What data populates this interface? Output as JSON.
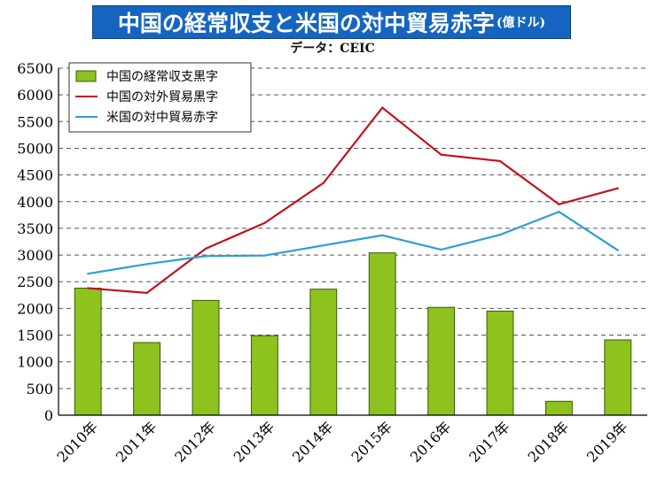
{
  "title": "中国の経常収支と米国の対中貿易赤字",
  "unit": "(億ドル)",
  "source": "データ：CEIC",
  "colors": {
    "title_bg": "#1565c0",
    "bar": "#8dc21f",
    "bar_border": "#3a5a0a",
    "china_trade_line": "#c0141e",
    "us_deficit_line": "#2a9fd6",
    "grid": "#555555"
  },
  "chart_data": {
    "type": "bar",
    "categories": [
      "2010年",
      "2011年",
      "2012年",
      "2013年",
      "2014年",
      "2015年",
      "2016年",
      "2017年",
      "2018年",
      "2019年"
    ],
    "ylim": [
      0,
      6500
    ],
    "yticks": [
      0,
      500,
      1000,
      1500,
      2000,
      2500,
      3000,
      3500,
      4000,
      4500,
      5000,
      5500,
      6000,
      6500
    ],
    "grid": "horizontal dashed",
    "legend_position": "top-left",
    "series": [
      {
        "name": "中国の経常収支黒字",
        "type": "bar",
        "values": [
          2380,
          1360,
          2150,
          1490,
          2360,
          3040,
          2020,
          1950,
          260,
          1410
        ]
      },
      {
        "name": "中国の対外貿易黒字",
        "type": "line",
        "values": [
          2380,
          2290,
          3120,
          3600,
          4350,
          5760,
          4880,
          4760,
          3950,
          4250
        ]
      },
      {
        "name": "米国の対中貿易赤字",
        "type": "line",
        "values": [
          2650,
          2830,
          2980,
          2990,
          3180,
          3370,
          3100,
          3380,
          3810,
          3090
        ]
      }
    ]
  }
}
